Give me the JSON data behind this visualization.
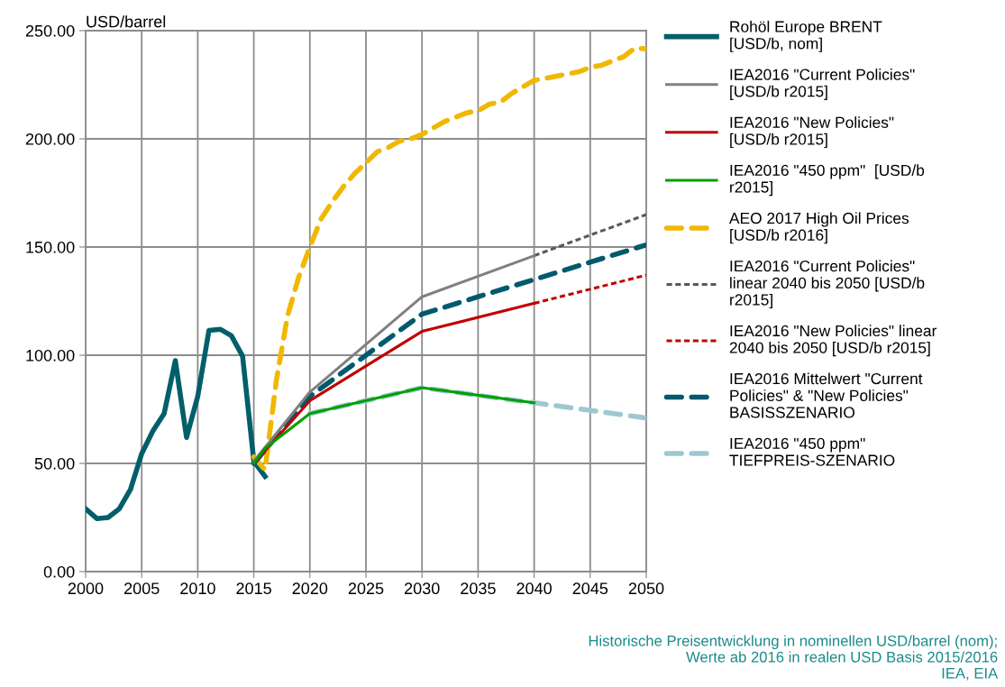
{
  "chart_data": {
    "type": "line",
    "ylabel": "USD/barrel",
    "xlim": [
      2000,
      2050
    ],
    "xticks": [
      2000,
      2005,
      2010,
      2015,
      2020,
      2025,
      2030,
      2035,
      2040,
      2045,
      2050
    ],
    "ylim": [
      0,
      250
    ],
    "yticks": [
      {
        "value": 0,
        "label": "0.00"
      },
      {
        "value": 50,
        "label": "50.00"
      },
      {
        "value": 100,
        "label": "100.00"
      },
      {
        "value": 150,
        "label": "150.00"
      },
      {
        "value": 200,
        "label": "200.00"
      },
      {
        "value": 250,
        "label": "250.00"
      }
    ],
    "grid": true,
    "legend": "right",
    "marker": "none",
    "series": [
      {
        "name": "Rohöl Europe BRENT\n[USD/b, nom]",
        "color": "#005f6a",
        "line_style": "solid",
        "x": [
          2000,
          2001,
          2002,
          2003,
          2004,
          2005,
          2006,
          2007,
          2008,
          2009,
          2010,
          2011,
          2012,
          2013,
          2014,
          2015,
          2016
        ],
        "values": [
          29,
          24.5,
          25,
          29,
          38,
          54.5,
          65,
          73,
          97.5,
          62,
          81,
          111.5,
          112,
          109,
          99.5,
          51,
          44
        ]
      },
      {
        "name": "IEA2016 \"Current Policies\"\n[USD/b r2015]",
        "color": "#808080",
        "line_style": "solid",
        "x": [
          2015,
          2020,
          2030,
          2040
        ],
        "values": [
          51,
          83,
          127,
          146
        ]
      },
      {
        "name": "IEA2016 \"New Policies\"\n[USD/b r2015]",
        "color": "#c00000",
        "line_style": "solid",
        "x": [
          2015,
          2020,
          2030,
          2040
        ],
        "values": [
          50,
          79,
          111,
          124
        ]
      },
      {
        "name": "IEA2016 \"450 ppm\"  [USD/b\nr2015]",
        "color": "#00a000",
        "line_style": "solid",
        "x": [
          2015,
          2016,
          2020,
          2030,
          2040
        ],
        "values": [
          50,
          57,
          73,
          85,
          78
        ]
      },
      {
        "name": "AEO 2017 High Oil Prices\n[USD/b r2016]",
        "color": "#f0b800",
        "line_style": "dashed",
        "x": [
          2015,
          2016,
          2017,
          2018,
          2019,
          2020,
          2021,
          2022,
          2023,
          2024,
          2025,
          2026,
          2027,
          2028,
          2029,
          2030,
          2031,
          2032,
          2033,
          2034,
          2035,
          2036,
          2037,
          2038,
          2039,
          2040,
          2041,
          2042,
          2043,
          2044,
          2045,
          2046,
          2047,
          2048,
          2049,
          2050
        ],
        "values": [
          53,
          47,
          88,
          118,
          136,
          150,
          163,
          171,
          178,
          184,
          189,
          194,
          196,
          199,
          200,
          202,
          205,
          208,
          210,
          212,
          213,
          216,
          217,
          221,
          224,
          227,
          228,
          229,
          230,
          231,
          233,
          234,
          236,
          238,
          242,
          241.5
        ]
      },
      {
        "name": "IEA2016 \"Current Policies\"\nlinear 2040 bis 2050 [USD/b\nr2015]",
        "color": "#595959",
        "line_style": "dotted",
        "x": [
          2040,
          2050
        ],
        "values": [
          146,
          165
        ]
      },
      {
        "name": "IEA2016 \"New Policies\" linear\n2040 bis 2050 [USD/b r2015]",
        "color": "#c00000",
        "line_style": "dotted",
        "x": [
          2040,
          2050
        ],
        "values": [
          124,
          137
        ]
      },
      {
        "name": "IEA2016 Mittelwert \"Current\nPolicies\" & \"New Policies\"\nBASISSZENARIO",
        "color": "#005a6e",
        "line_style": "dashed",
        "x": [
          2015,
          2020,
          2030,
          2040,
          2050
        ],
        "values": [
          50,
          81,
          119,
          135,
          151
        ]
      },
      {
        "name": "IEA2016 \"450 ppm\"\nTIEFPREIS-SZENARIO",
        "color": "#9ec8d0",
        "line_style": "dashed",
        "x": [
          2020,
          2030,
          2040,
          2050
        ],
        "values": [
          73,
          85,
          78,
          71
        ]
      }
    ],
    "annotations": [
      "Historische Preisentwicklung in nominellen USD/barrel (nom);\nWerte ab 2016 in realen USD Basis 2015/2016\nIEA, EIA"
    ]
  }
}
